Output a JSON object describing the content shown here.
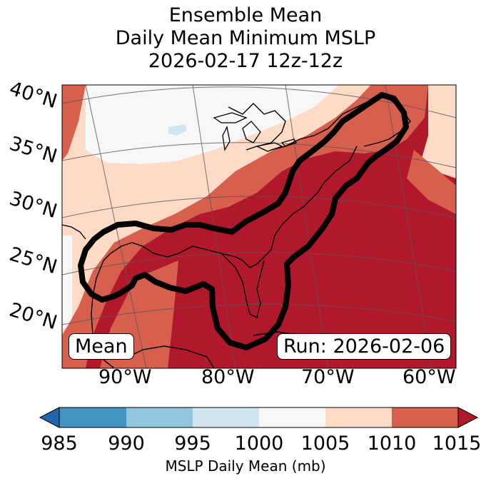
{
  "title": {
    "line1": "Ensemble Mean",
    "line2": "Daily Mean Minimum MSLP",
    "line3": "2026-02-17 12z-12z"
  },
  "map": {
    "lat_labels": [
      "40°N",
      "35°N",
      "30°N",
      "25°N",
      "20°N"
    ],
    "lon_labels": [
      "90°W",
      "80°W",
      "70°W",
      "60°W"
    ],
    "mean_label": "Mean",
    "run_label": "Run: 2026-02-06"
  },
  "colorbar": {
    "ticks": [
      "985",
      "990",
      "995",
      "1000",
      "1005",
      "1010",
      "1015"
    ],
    "label": "MSLP Daily Mean (mb)",
    "colors": [
      "#2166ac",
      "#4393c3",
      "#92c5de",
      "#d1e5f0",
      "#f7f7f7",
      "#fddbc7",
      "#d6604d",
      "#b2182b"
    ]
  }
}
